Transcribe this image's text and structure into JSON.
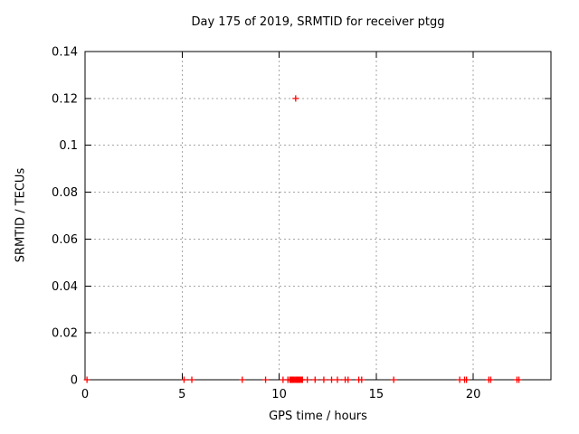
{
  "window": {
    "background": "#ffffff"
  },
  "chart_data": {
    "type": "scatter",
    "title": "Day 175 of 2019, SRMTID for receiver ptgg",
    "xlabel": "GPS time / hours",
    "ylabel": "SRMTID / TECUs",
    "xlim": [
      0,
      24
    ],
    "ylim": [
      0,
      0.14
    ],
    "xticks": [
      0,
      5,
      10,
      15,
      20
    ],
    "xtick_labels": [
      "0",
      "5",
      "10",
      "15",
      "20"
    ],
    "yticks": [
      0,
      0.02,
      0.04,
      0.06,
      0.08,
      0.1,
      0.12,
      0.14
    ],
    "ytick_labels": [
      "0",
      "0.02",
      "0.04",
      "0.06",
      "0.08",
      "0.1",
      "0.12",
      "0.14"
    ],
    "grid": true,
    "grid_style": "dashed",
    "legend": false,
    "marker": "plus",
    "series": [
      {
        "name": "SRMTID",
        "color": "#ff0000",
        "points": [
          [
            0.1,
            0
          ],
          [
            5.1,
            0
          ],
          [
            5.5,
            0
          ],
          [
            8.1,
            0
          ],
          [
            9.3,
            0
          ],
          [
            10.2,
            0
          ],
          [
            10.45,
            0
          ],
          [
            10.55,
            0
          ],
          [
            10.6,
            0
          ],
          [
            10.65,
            0
          ],
          [
            10.7,
            0
          ],
          [
            10.75,
            0
          ],
          [
            10.8,
            0
          ],
          [
            10.85,
            0
          ],
          [
            10.85,
            0.12
          ],
          [
            10.9,
            0
          ],
          [
            10.95,
            0
          ],
          [
            11.0,
            0
          ],
          [
            11.05,
            0
          ],
          [
            11.1,
            0
          ],
          [
            11.15,
            0
          ],
          [
            11.2,
            0
          ],
          [
            11.45,
            0
          ],
          [
            11.85,
            0
          ],
          [
            12.3,
            0
          ],
          [
            12.7,
            0
          ],
          [
            13.0,
            0
          ],
          [
            13.4,
            0
          ],
          [
            13.55,
            0
          ],
          [
            14.1,
            0
          ],
          [
            14.25,
            0
          ],
          [
            15.9,
            0
          ],
          [
            19.3,
            0
          ],
          [
            19.55,
            0
          ],
          [
            19.65,
            0
          ],
          [
            20.8,
            0
          ],
          [
            20.9,
            0
          ],
          [
            22.25,
            0
          ],
          [
            22.35,
            0
          ]
        ]
      }
    ],
    "colors": {
      "marker": "#ff0000",
      "border": "#000000",
      "grid": "#a6a6a6",
      "text": "#000000",
      "background": "#ffffff"
    }
  }
}
